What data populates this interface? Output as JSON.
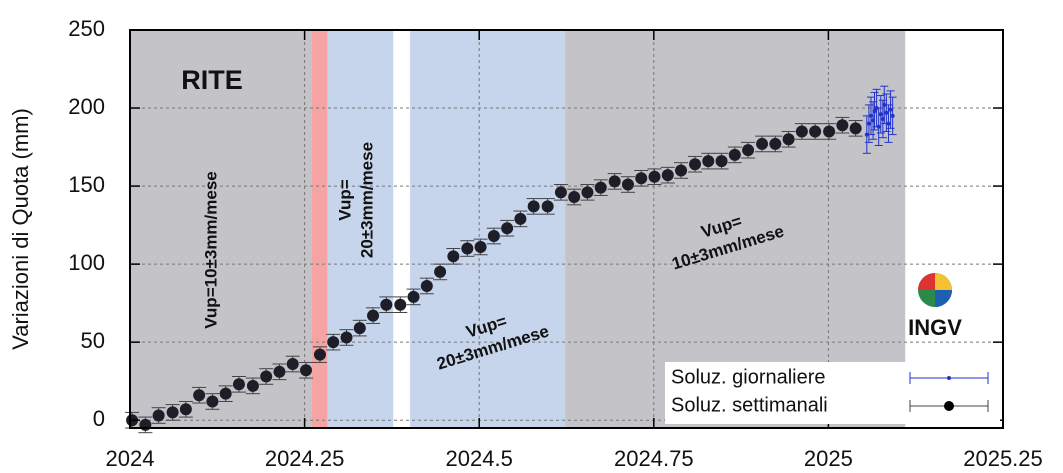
{
  "chart_data": {
    "type": "scatter",
    "station": "RITE",
    "y_label": "Variazioni di Quota (mm)",
    "logo_text": "INGV",
    "xlim": [
      2024,
      2025.25
    ],
    "ylim": [
      -5,
      250
    ],
    "xticks": [
      2024,
      2024.25,
      2024.5,
      2024.75,
      2025,
      2025.25
    ],
    "yticks": [
      0,
      50,
      100,
      150,
      200,
      250
    ],
    "grid": true,
    "legend": "lower right",
    "regions": [
      {
        "start": 2024,
        "end": 2024.26,
        "color": "#c3c3c8"
      },
      {
        "start": 2024.26,
        "end": 2024.283,
        "color": "#f5a3a3"
      },
      {
        "start": 2024.283,
        "end": 2024.377,
        "color": "#c6d4ec"
      },
      {
        "start": 2024.401,
        "end": 2024.623,
        "color": "#c6d4ec"
      },
      {
        "start": 2024.623,
        "end": 2025.11,
        "color": "#c3c3c8"
      }
    ],
    "annotations": [
      [
        "Vup=10±3mm/mese"
      ],
      [
        "Vup=",
        "20±3mm/mese"
      ],
      [
        "Vup=",
        "20±3mm/mese"
      ],
      [
        "Vup=",
        "10±3mm/mese"
      ]
    ],
    "series": [
      {
        "name": "Soluz. giornaliere",
        "color": "#2233cc",
        "x": [
          2025.055,
          2025.058,
          2025.061,
          2025.064,
          2025.066,
          2025.069,
          2025.072,
          2025.075,
          2025.078,
          2025.08,
          2025.083,
          2025.086,
          2025.089,
          2025.092
        ],
        "values": [
          183,
          190,
          195,
          192,
          198,
          200,
          188,
          196,
          193,
          202,
          197,
          190,
          199,
          195
        ],
        "errors": [
          12,
          12,
          12,
          12,
          12,
          12,
          12,
          12,
          12,
          12,
          12,
          12,
          12,
          12
        ]
      },
      {
        "name": "Soluz. settimanali",
        "color": "#111111",
        "x": [
          2024.003,
          2024.022,
          2024.041,
          2024.061,
          2024.08,
          2024.099,
          2024.118,
          2024.137,
          2024.156,
          2024.176,
          2024.195,
          2024.214,
          2024.233,
          2024.252,
          2024.272,
          2024.291,
          2024.31,
          2024.329,
          2024.348,
          2024.367,
          2024.387,
          2024.406,
          2024.425,
          2024.444,
          2024.463,
          2024.483,
          2024.502,
          2024.521,
          2024.54,
          2024.559,
          2024.578,
          2024.598,
          2024.617,
          2024.636,
          2024.655,
          2024.674,
          2024.694,
          2024.713,
          2024.732,
          2024.751,
          2024.77,
          2024.789,
          2024.809,
          2024.828,
          2024.847,
          2024.866,
          2024.885,
          2024.905,
          2024.924,
          2024.943,
          2024.962,
          2024.981,
          2025.001,
          2025.02,
          2025.039
        ],
        "values": [
          0,
          -3,
          3,
          5,
          7,
          16,
          12,
          17,
          23,
          22,
          28,
          31,
          36,
          32,
          42,
          50,
          53,
          59,
          67,
          74,
          74,
          79,
          86,
          95,
          105,
          110,
          111,
          118,
          123,
          129,
          137,
          137,
          146,
          143,
          146,
          149,
          153,
          151,
          155,
          156,
          157,
          160,
          164,
          166,
          166,
          170,
          173,
          177,
          177,
          180,
          185,
          185,
          185,
          189,
          187
        ],
        "errors": [
          5,
          5,
          5,
          5,
          5,
          5,
          5,
          5,
          5,
          5,
          5,
          5,
          5,
          5,
          5,
          5,
          5,
          5,
          5,
          5,
          5,
          5,
          5,
          5,
          5,
          5,
          5,
          5,
          5,
          5,
          5,
          5,
          5,
          5,
          5,
          5,
          5,
          5,
          5,
          5,
          5,
          5,
          5,
          5,
          5,
          5,
          5,
          5,
          5,
          5,
          5,
          5,
          5,
          5,
          5
        ]
      }
    ]
  }
}
